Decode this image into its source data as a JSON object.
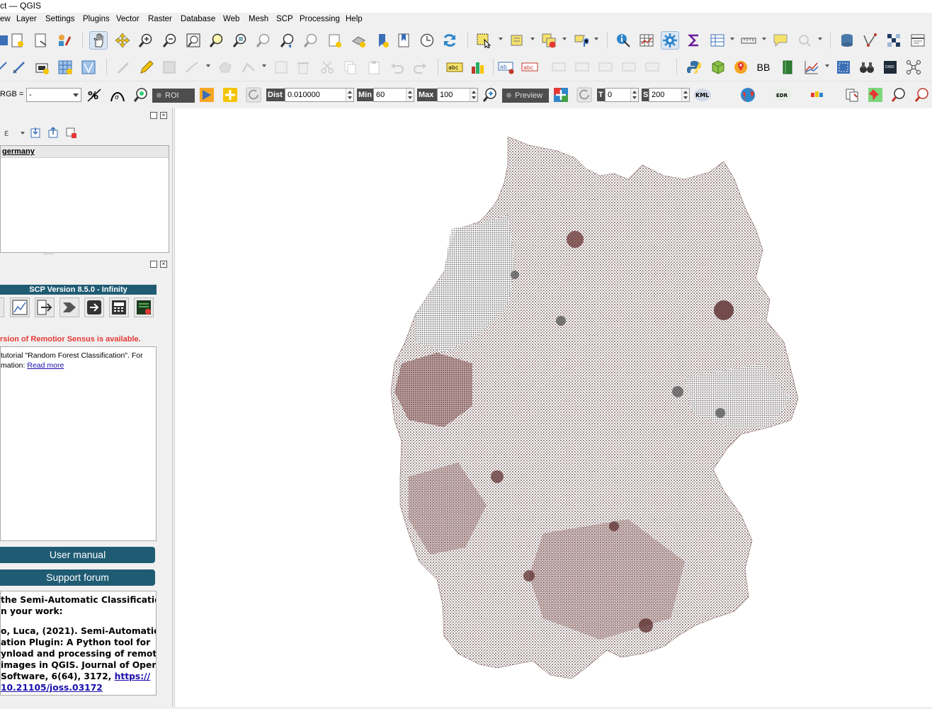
{
  "window": {
    "title": "ct — QGIS"
  },
  "menu": [
    "ew",
    "Layer",
    "Settings",
    "Plugins",
    "Vector",
    "Raster",
    "Database",
    "Web",
    "Mesh",
    "SCP",
    "Processing",
    "Help"
  ],
  "toolbar3": {
    "rgb_label": "RGB =",
    "rgb_value": "-",
    "roi_label": "ROI",
    "dist_label": "Dist",
    "dist_value": "0.010000",
    "min_label": "Min",
    "min_value": "60",
    "max_label": "Max",
    "max_value": "100",
    "preview_label": "Preview",
    "t_label": "T",
    "t_value": "0",
    "s_label": "S",
    "s_value": "200",
    "kml_label": "KML",
    "edr_label": "EDR"
  },
  "toolbar2": {
    "bb_label": "BB",
    "abc_label": "abc",
    "ab_label": "ab"
  },
  "layers_panel": {
    "filter_icon_text": "ε",
    "layer_name": "germany"
  },
  "scp_panel": {
    "version": "SCP Version 8.5.0 - Infinity",
    "news_alert": "rsion of Remotior Sensus is available.",
    "news_line1": " tutorial \"Random Forest Classification\". For",
    "news_line2": "mation: ",
    "read_more": "Read more",
    "user_manual": "User manual",
    "support_forum": "Support forum",
    "cite_line1": "the Semi-Automatic Classification",
    "cite_line2": "n your work:",
    "ref_line1": "o, Luca, (2021). Semi-Automatic",
    "ref_line2": "ation Plugin: A Python tool for",
    "ref_line3": "ynload and processing of remote",
    "ref_line4": " images in QGIS. Journal of Open",
    "ref_line5": "Software, 6(64), 3172, ",
    "ref_link1": "https://",
    "ref_link2": "10.21105/joss.03172"
  },
  "colors": {
    "scp_blue": "#1f5c73",
    "map_points": "#5a2a2a",
    "alert_red": "#e53935"
  }
}
